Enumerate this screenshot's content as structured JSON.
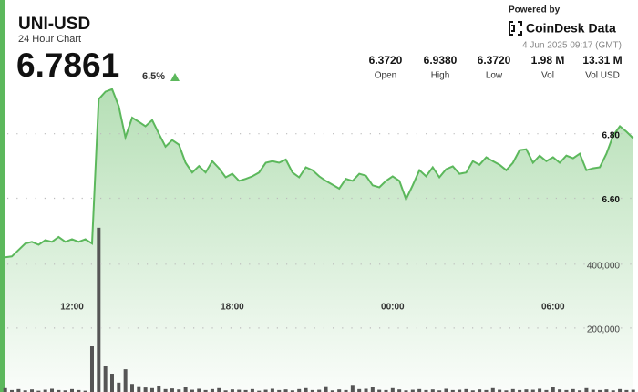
{
  "header": {
    "title": "UNI-USD",
    "subtitle": "24 Hour Chart",
    "price": "6.7861",
    "change": "6.5%",
    "powered_by": "Powered by",
    "brand": "CoinDesk Data",
    "timestamp": "4 Jun 2025 09:17 (GMT)",
    "stats": [
      {
        "value": "6.3720",
        "label": "Open"
      },
      {
        "value": "6.9380",
        "label": "High"
      },
      {
        "value": "6.3720",
        "label": "Low"
      },
      {
        "value": "1.98 M",
        "label": "Vol"
      },
      {
        "value": "13.31 M",
        "label": "Vol USD"
      }
    ]
  },
  "chart_data": {
    "type": "line",
    "categories": [
      null,
      null,
      null,
      null,
      null,
      null,
      null,
      null,
      null,
      null,
      "12:00",
      null,
      null,
      null,
      null,
      null,
      null,
      null,
      null,
      null,
      null,
      null,
      null,
      null,
      null,
      null,
      null,
      null,
      null,
      null,
      null,
      null,
      null,
      null,
      "18:00",
      null,
      null,
      null,
      null,
      null,
      null,
      null,
      null,
      null,
      null,
      null,
      null,
      null,
      null,
      null,
      null,
      null,
      null,
      null,
      null,
      null,
      null,
      null,
      "00:00",
      null,
      null,
      null,
      null,
      null,
      null,
      null,
      null,
      null,
      null,
      null,
      null,
      null,
      null,
      null,
      null,
      null,
      null,
      null,
      null,
      null,
      null,
      null,
      "06:00",
      null,
      null,
      null,
      null,
      null,
      null,
      null,
      null,
      null,
      null,
      null,
      null
    ],
    "series": [
      {
        "type": "line",
        "color": "#5cb85c",
        "values": [
          6.417,
          6.42,
          6.44,
          6.46,
          6.465,
          6.456,
          6.47,
          6.465,
          6.48,
          6.465,
          6.473,
          6.465,
          6.473,
          6.46,
          6.907,
          6.93,
          6.938,
          6.885,
          6.789,
          6.85,
          6.837,
          6.823,
          6.842,
          6.8,
          6.76,
          6.78,
          6.766,
          6.71,
          6.68,
          6.7,
          6.68,
          6.715,
          6.693,
          6.665,
          6.676,
          6.654,
          6.66,
          6.668,
          6.68,
          6.71,
          6.715,
          6.71,
          6.72,
          6.68,
          6.665,
          6.696,
          6.687,
          6.668,
          6.654,
          6.642,
          6.63,
          6.66,
          6.654,
          6.676,
          6.67,
          6.64,
          6.634,
          6.654,
          6.668,
          6.654,
          6.597,
          6.64,
          6.687,
          6.668,
          6.696,
          6.665,
          6.69,
          6.699,
          6.676,
          6.68,
          6.715,
          6.704,
          6.727,
          6.715,
          6.704,
          6.687,
          6.71,
          6.749,
          6.752,
          6.71,
          6.732,
          6.715,
          6.727,
          6.71,
          6.732,
          6.724,
          6.738,
          6.687,
          6.693,
          6.696,
          6.738,
          6.794,
          6.823,
          6.806,
          6.786
        ]
      },
      {
        "type": "bar",
        "axis": "y2",
        "color": "#555555",
        "values": [
          12000,
          6000,
          9000,
          5000,
          8000,
          4000,
          7000,
          10000,
          6000,
          5000,
          9000,
          6000,
          4000,
          143000,
          514000,
          80000,
          57000,
          29000,
          71000,
          25000,
          18000,
          14000,
          12000,
          20000,
          9000,
          11000,
          8000,
          16000,
          7000,
          10000,
          6000,
          9000,
          12000,
          5000,
          8000,
          7000,
          6000,
          9000,
          4000,
          7000,
          10000,
          6000,
          8000,
          5000,
          9000,
          12000,
          6000,
          7000,
          18000,
          5000,
          8000,
          6000,
          22000,
          9000,
          10000,
          16000,
          7000,
          6000,
          12000,
          8000,
          5000,
          7000,
          9000,
          6000,
          8000,
          5000,
          10000,
          6000,
          7000,
          9000,
          5000,
          8000,
          6000,
          12000,
          7000,
          5000,
          9000,
          6000,
          8000,
          7000,
          10000,
          6000,
          15000,
          8000,
          6000,
          9000,
          5000,
          12000,
          7000,
          6000,
          8000,
          5000,
          9000,
          6000,
          7000
        ]
      }
    ],
    "ylim": [
      6.0,
      6.96
    ],
    "yticks": [
      {
        "value": 6.6,
        "label": "6.60"
      },
      {
        "value": 6.8,
        "label": "6.80"
      }
    ],
    "y2lim": [
      0,
      970000
    ],
    "y2ticks": [
      {
        "value": 200000,
        "label": "200,000"
      },
      {
        "value": 400000,
        "label": "400,000"
      }
    ],
    "grid": true
  }
}
